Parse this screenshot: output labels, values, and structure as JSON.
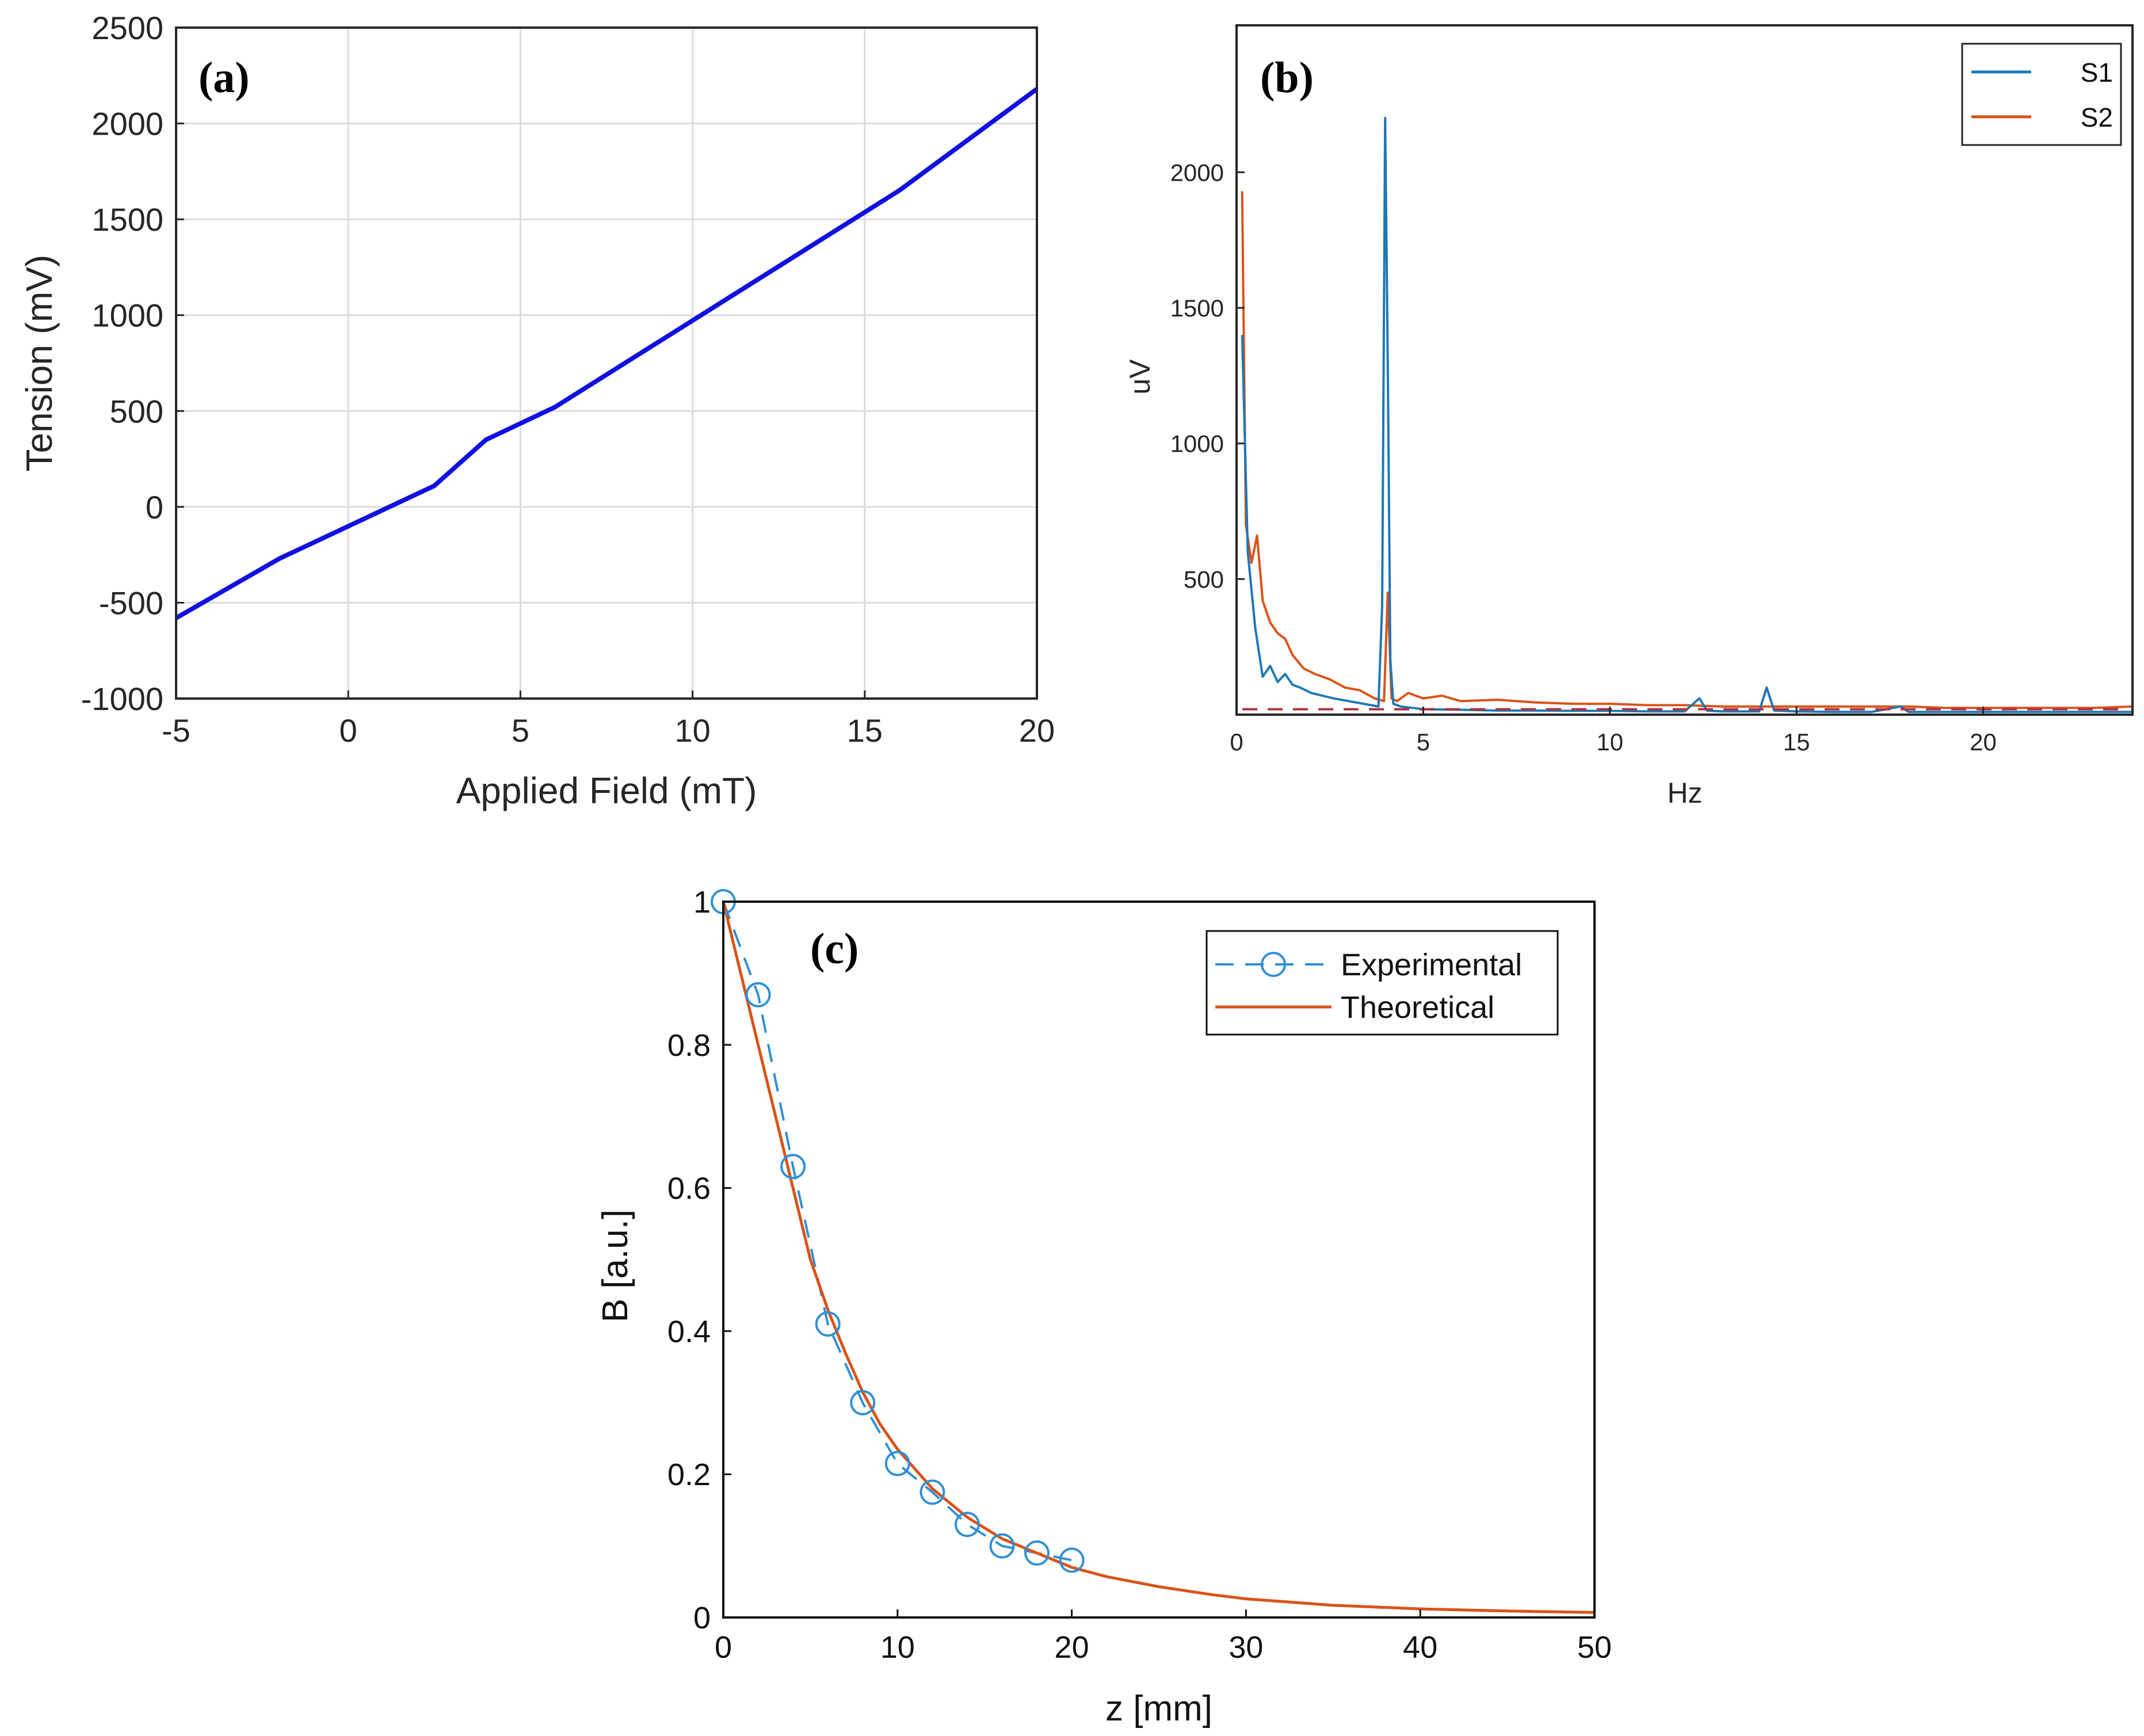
{
  "chart_data": [
    {
      "type": "line",
      "panel_label": "(a)",
      "xlabel": "Applied Field (mT)",
      "ylabel": "Tension (mV)",
      "xlim": [
        -5,
        20
      ],
      "ylim": [
        -1000,
        2500
      ],
      "xticks": [
        -5,
        0,
        5,
        10,
        15,
        20
      ],
      "yticks": [
        -1000,
        -500,
        0,
        500,
        1000,
        1500,
        2000,
        2500
      ],
      "grid": true,
      "series": [
        {
          "color": "#1010e0",
          "x": [
            -5,
            -2,
            2.5,
            4,
            6,
            16,
            20
          ],
          "y": [
            -580,
            -270,
            110,
            350,
            520,
            1650,
            2180
          ]
        }
      ]
    },
    {
      "type": "line",
      "panel_label": "(b)",
      "xlabel": "Hz",
      "ylabel": "uV",
      "xlim": [
        0,
        24
      ],
      "ylim": [
        0,
        2200
      ],
      "xticks": [
        0,
        5,
        10,
        15,
        20
      ],
      "yticks": [
        500,
        1000,
        1500,
        2000
      ],
      "grid": false,
      "legend": "top-right",
      "threshold": 20,
      "series": [
        {
          "name": "S1",
          "color": "#1f77b4",
          "x": [
            0.15,
            0.3,
            0.5,
            0.7,
            0.9,
            1.1,
            1.3,
            1.5,
            1.7,
            2.0,
            2.3,
            2.6,
            3.0,
            3.4,
            3.8,
            3.9,
            3.98,
            4.05,
            4.12,
            4.2,
            4.4,
            5,
            6,
            7,
            8,
            9,
            10,
            11,
            12,
            12.4,
            12.6,
            13,
            14,
            14.2,
            14.4,
            15,
            16,
            17,
            17.8,
            18,
            19,
            20,
            21,
            22,
            23,
            24
          ],
          "y": [
            1400,
            600,
            320,
            140,
            180,
            120,
            150,
            110,
            100,
            80,
            70,
            60,
            50,
            40,
            30,
            400,
            2200,
            1300,
            200,
            40,
            30,
            20,
            18,
            15,
            15,
            14,
            14,
            12,
            12,
            60,
            15,
            12,
            12,
            100,
            15,
            12,
            10,
            10,
            30,
            10,
            10,
            10,
            10,
            10,
            10,
            10
          ]
        },
        {
          "name": "S2",
          "color": "#d95319",
          "x": [
            0.15,
            0.25,
            0.4,
            0.55,
            0.7,
            0.9,
            1.1,
            1.3,
            1.5,
            1.8,
            2.1,
            2.5,
            2.9,
            3.3,
            3.7,
            3.95,
            4.05,
            4.15,
            4.3,
            4.6,
            5,
            5.5,
            6,
            7,
            8,
            9,
            10,
            11,
            12,
            13,
            14,
            15,
            16,
            17,
            18,
            19,
            20,
            21,
            22,
            23,
            24
          ],
          "y": [
            1930,
            700,
            560,
            660,
            420,
            340,
            300,
            280,
            220,
            170,
            150,
            130,
            100,
            90,
            60,
            50,
            450,
            60,
            50,
            80,
            60,
            70,
            50,
            55,
            45,
            40,
            40,
            35,
            35,
            30,
            30,
            30,
            30,
            30,
            30,
            25,
            25,
            25,
            25,
            25,
            30
          ]
        }
      ]
    },
    {
      "type": "line",
      "panel_label": "(c)",
      "xlabel": "z [mm]",
      "ylabel": "B [a.u.]",
      "xlim": [
        0,
        50
      ],
      "ylim": [
        0,
        1
      ],
      "xticks": [
        0,
        10,
        20,
        30,
        40,
        50
      ],
      "yticks": [
        0,
        0.2,
        0.4,
        0.6,
        0.8,
        1
      ],
      "grid": false,
      "legend": "top-right",
      "series": [
        {
          "name": "Experimental",
          "color": "#2e8fd6",
          "style": "dashed-circle-markers",
          "x": [
            0,
            2,
            4,
            6,
            8,
            10,
            12,
            14,
            16,
            18,
            20
          ],
          "y": [
            1.0,
            0.87,
            0.63,
            0.41,
            0.3,
            0.215,
            0.175,
            0.13,
            0.1,
            0.09,
            0.08
          ]
        },
        {
          "name": "Theoretical",
          "color": "#d95319",
          "style": "solid",
          "x": [
            0,
            1,
            2,
            3,
            4,
            5,
            6,
            7,
            8,
            9,
            10,
            12,
            14,
            16,
            18,
            20,
            22,
            25,
            28,
            30,
            35,
            40,
            45,
            50
          ],
          "y": [
            1.0,
            0.9,
            0.8,
            0.7,
            0.6,
            0.5,
            0.43,
            0.37,
            0.315,
            0.27,
            0.235,
            0.18,
            0.14,
            0.11,
            0.09,
            0.07,
            0.057,
            0.043,
            0.032,
            0.026,
            0.017,
            0.012,
            0.009,
            0.007
          ]
        }
      ]
    }
  ]
}
